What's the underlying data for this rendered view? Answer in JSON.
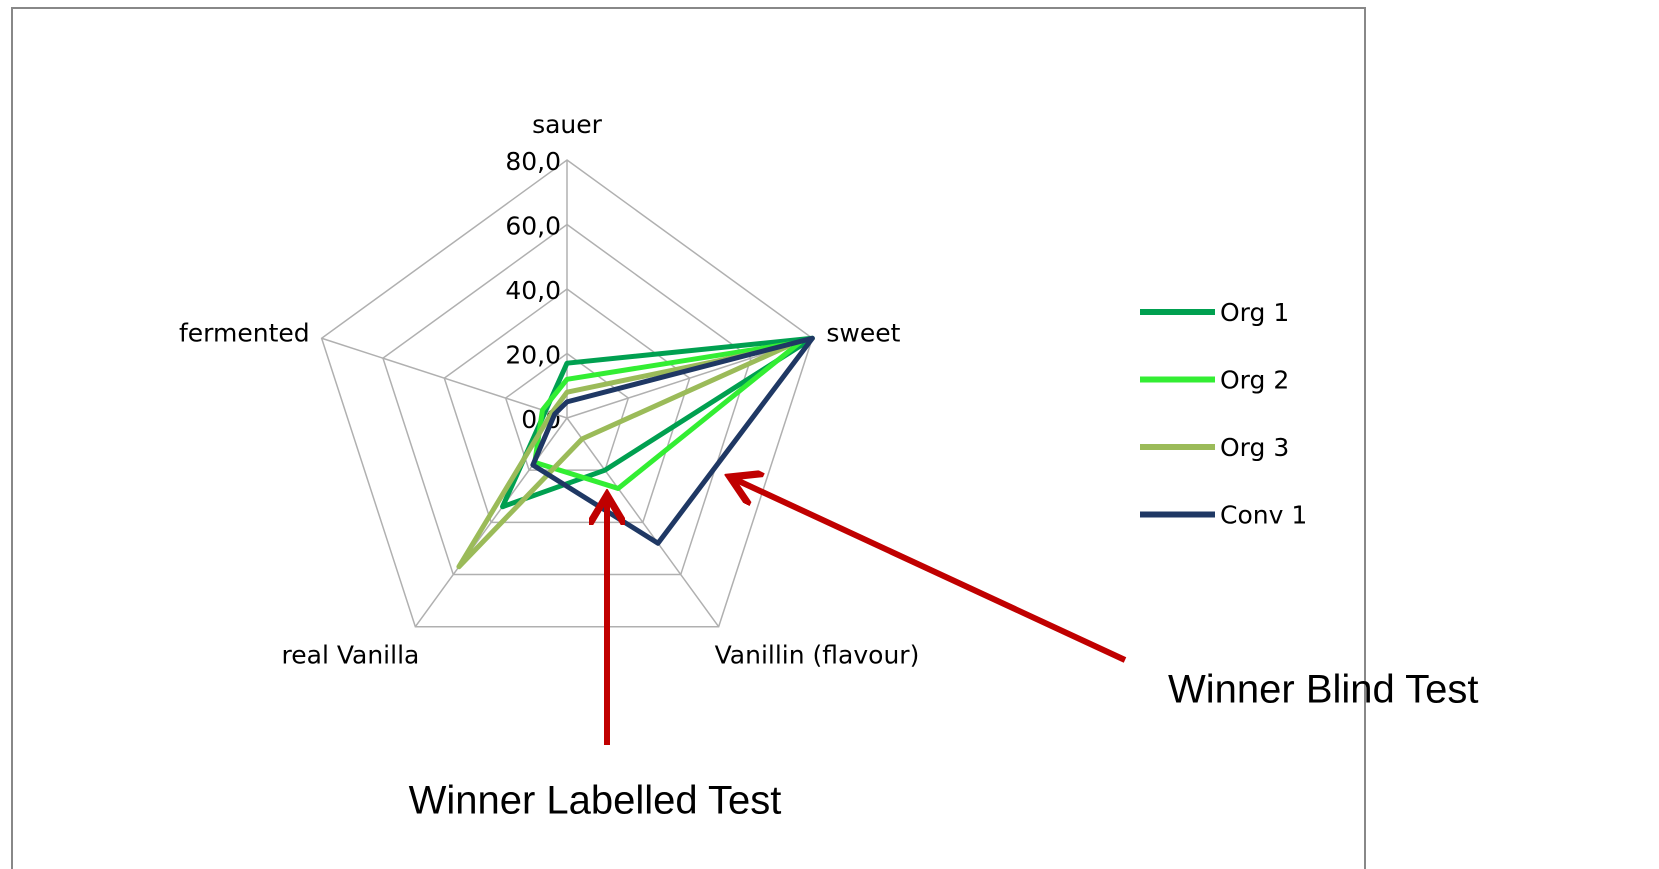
{
  "chart_data": {
    "type": "radar",
    "categories": [
      "sauer",
      "sweet",
      "Vanillin (flavour)",
      "real Vanilla",
      "fermented"
    ],
    "series": [
      {
        "name": "Org 1",
        "color": "#00a050",
        "values": [
          17,
          80,
          20,
          34,
          7
        ]
      },
      {
        "name": "Org 2",
        "color": "#33ee33",
        "values": [
          12,
          76,
          27,
          17,
          8
        ]
      },
      {
        "name": "Org 3",
        "color": "#9bbb59",
        "values": [
          8,
          72,
          8,
          57,
          5
        ]
      },
      {
        "name": "Conv 1",
        "color": "#1f3864",
        "values": [
          5,
          80,
          48,
          18,
          4
        ]
      }
    ],
    "ylim": [
      0,
      80
    ],
    "yticks": [
      {
        "value": 0,
        "label": "0,0"
      },
      {
        "value": 20,
        "label": "20,0"
      },
      {
        "value": 40,
        "label": "40,0"
      },
      {
        "value": 60,
        "label": "60,0"
      },
      {
        "value": 80,
        "label": "80,0"
      }
    ],
    "grid": true,
    "legend": "right",
    "annotations": [
      "Winner Blind Test",
      "Winner Labelled Test"
    ]
  }
}
